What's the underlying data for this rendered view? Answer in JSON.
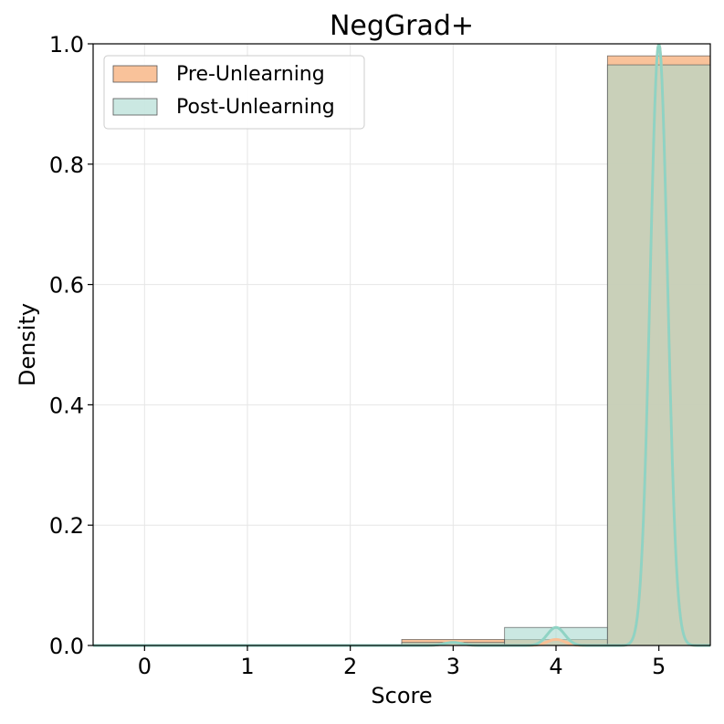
{
  "chart_data": {
    "type": "bar",
    "title": "NegGrad+",
    "xlabel": "Score",
    "ylabel": "Density",
    "categories": [
      "0",
      "1",
      "2",
      "3",
      "4",
      "5"
    ],
    "x_values": [
      0,
      1,
      2,
      3,
      4,
      5
    ],
    "xlim": [
      -0.5,
      5.5
    ],
    "ylim": [
      0,
      1.0
    ],
    "y_ticks": [
      "0.0",
      "0.2",
      "0.4",
      "0.6",
      "0.8",
      "1.0"
    ],
    "y_tick_values": [
      0,
      0.2,
      0.4,
      0.6,
      0.8,
      1.0
    ],
    "grid": true,
    "legend_position": "top-left",
    "series": [
      {
        "name": "Pre-Unlearning",
        "color": "#f9bf95",
        "values": [
          0,
          0,
          0,
          0.01,
          0.01,
          0.98
        ],
        "kde_peaks": [
          0.005,
          0.01,
          1.0
        ]
      },
      {
        "name": "Post-Unlearning",
        "color": "#a8d8cf",
        "line_color": "#8fd3c4",
        "values": [
          0,
          0,
          0,
          0.005,
          0.03,
          0.965
        ],
        "kde_peaks": [
          0.005,
          0.03,
          1.0
        ]
      }
    ]
  }
}
